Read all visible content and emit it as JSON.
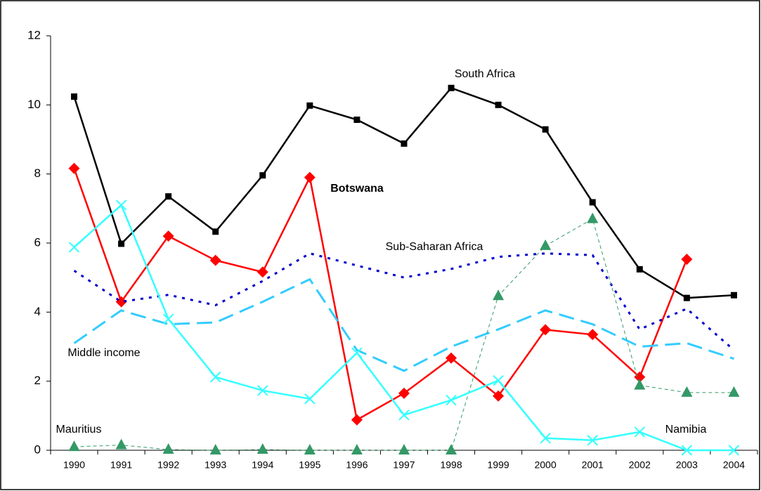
{
  "chart_data": {
    "type": "line",
    "categories": [
      "1990",
      "1991",
      "1992",
      "1993",
      "1994",
      "1995",
      "1996",
      "1997",
      "1998",
      "1999",
      "2000",
      "2001",
      "2002",
      "2003",
      "2004"
    ],
    "ylim": [
      0,
      12
    ],
    "yticks": [
      0,
      2,
      4,
      6,
      8,
      10,
      12
    ],
    "grid": false,
    "series": [
      {
        "name": "South Africa",
        "color": "#000000",
        "marker": "square",
        "dash": "solid",
        "width": 2.5,
        "values": [
          10.24,
          5.98,
          7.35,
          6.33,
          7.96,
          9.98,
          9.57,
          8.88,
          10.49,
          10.0,
          9.29,
          7.18,
          5.24,
          4.41,
          4.49
        ]
      },
      {
        "name": "Botswana",
        "color": "#ff0000",
        "marker": "diamond",
        "dash": "solid",
        "width": 2.5,
        "values": [
          8.16,
          4.3,
          6.2,
          5.5,
          5.16,
          7.9,
          0.88,
          1.65,
          2.67,
          1.57,
          3.49,
          3.35,
          2.12,
          5.53,
          null
        ]
      },
      {
        "name": "Sub-Saharan Africa",
        "color": "#0000cc",
        "marker": "none",
        "dash": "dotted",
        "width": 3,
        "values": [
          5.2,
          4.3,
          4.5,
          4.2,
          4.9,
          5.7,
          5.35,
          5.0,
          5.25,
          5.6,
          5.7,
          5.65,
          3.5,
          4.1,
          2.9
        ]
      },
      {
        "name": "Middle income",
        "color": "#33ccff",
        "marker": "none",
        "dash": "longdash",
        "width": 3,
        "values": [
          3.1,
          4.05,
          3.65,
          3.7,
          4.3,
          4.95,
          2.9,
          2.3,
          3.0,
          3.5,
          4.05,
          3.65,
          3.0,
          3.1,
          2.65
        ]
      },
      {
        "name": "Mauritius",
        "color": "#339966",
        "marker": "triangle",
        "dash": "thin",
        "width": 1,
        "values": [
          0.1,
          0.15,
          0.02,
          0,
          0.02,
          0,
          0,
          0,
          0,
          4.47,
          5.92,
          6.7,
          1.88,
          1.67,
          1.67
        ]
      },
      {
        "name": "Namibia",
        "color": "#33ffff",
        "marker": "cross",
        "dash": "solid",
        "width": 2.5,
        "values": [
          5.88,
          7.1,
          3.8,
          2.12,
          1.73,
          1.49,
          2.82,
          1.02,
          1.45,
          2.02,
          0.35,
          0.29,
          0.53,
          0,
          0
        ]
      }
    ]
  }
}
